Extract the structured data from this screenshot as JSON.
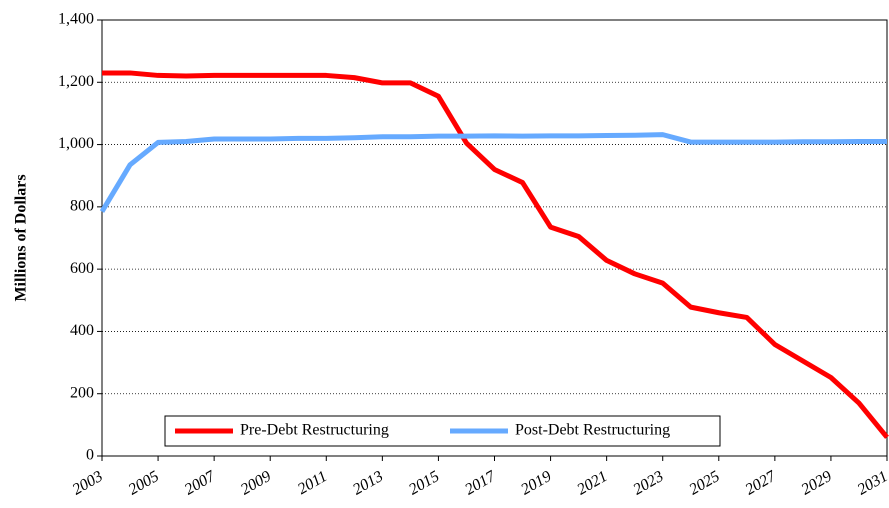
{
  "chart_data": {
    "type": "line",
    "ylabel": "Millions of Dollars",
    "x": [
      2003,
      2004,
      2005,
      2006,
      2007,
      2008,
      2009,
      2010,
      2011,
      2012,
      2013,
      2014,
      2015,
      2016,
      2017,
      2018,
      2019,
      2020,
      2021,
      2022,
      2023,
      2024,
      2025,
      2026,
      2027,
      2028,
      2029,
      2030,
      2031
    ],
    "series": [
      {
        "name": "Pre-Debt Restructuring",
        "color": "#ff0000",
        "values": [
          1230,
          1230,
          1222,
          1220,
          1222,
          1222,
          1222,
          1222,
          1222,
          1215,
          1198,
          1198,
          1155,
          1005,
          920,
          878,
          735,
          705,
          628,
          585,
          555,
          478,
          460,
          445,
          358,
          305,
          252,
          170,
          60
        ]
      },
      {
        "name": "Post-Debt Restructuring",
        "color": "#66aaff",
        "values": [
          785,
          935,
          1007,
          1010,
          1018,
          1018,
          1018,
          1020,
          1020,
          1022,
          1025,
          1025,
          1027,
          1027,
          1028,
          1027,
          1028,
          1028,
          1029,
          1030,
          1032,
          1008,
          1008,
          1008,
          1008,
          1009,
          1009,
          1010,
          1010
        ]
      }
    ],
    "xlim": [
      2003,
      2031
    ],
    "xticks": [
      2003,
      2005,
      2007,
      2009,
      2011,
      2013,
      2015,
      2017,
      2019,
      2021,
      2023,
      2025,
      2027,
      2029,
      2031
    ],
    "ylim": [
      0,
      1400
    ],
    "yticks": [
      0,
      200,
      400,
      600,
      800,
      {
        "value": 1000,
        "label": "1,000"
      },
      {
        "value": 1200,
        "label": "1,200"
      },
      {
        "value": 1400,
        "label": "1,400"
      }
    ],
    "grid": true,
    "legend": "lower center"
  }
}
